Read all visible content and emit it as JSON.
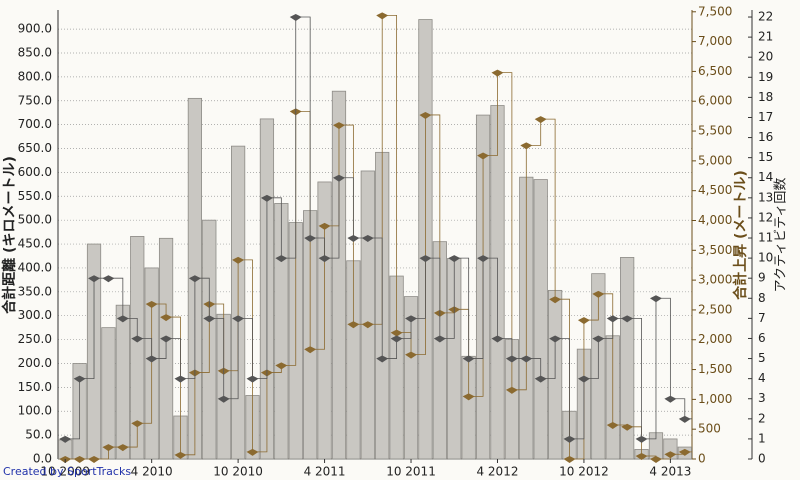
{
  "chart_data": {
    "type": "bar",
    "ylabel": "合計距離 (キロメートル)",
    "y2label": "合計上昇 (メートル)",
    "y3label": "アクティビティ回数",
    "footer": "Created by SportTracks",
    "categories": [
      "10 2009",
      null,
      null,
      null,
      null,
      null,
      "4 2010",
      null,
      null,
      null,
      null,
      null,
      "10 2010",
      null,
      null,
      null,
      null,
      null,
      "4 2011",
      null,
      null,
      null,
      null,
      null,
      "10 2011",
      null,
      null,
      null,
      null,
      null,
      "4 2012",
      null,
      null,
      null,
      null,
      null,
      "10 2012",
      null,
      null,
      null,
      null,
      null,
      "4 2013",
      null
    ],
    "ylim": [
      0,
      940
    ],
    "y2lim": [
      0,
      7530
    ],
    "y3lim": [
      0,
      22.35
    ],
    "yticks": [
      {
        "value": 0,
        "label": "0.0"
      },
      {
        "value": 50,
        "label": "50.0"
      },
      {
        "value": 100,
        "label": "100.0"
      },
      {
        "value": 150,
        "label": "150.0"
      },
      {
        "value": 200,
        "label": "200.0"
      },
      {
        "value": 250,
        "label": "250.0"
      },
      {
        "value": 300,
        "label": "300.0"
      },
      {
        "value": 350,
        "label": "350.0"
      },
      {
        "value": 400,
        "label": "400.0"
      },
      {
        "value": 450,
        "label": "450.0"
      },
      {
        "value": 500,
        "label": "500.0"
      },
      {
        "value": 550,
        "label": "550.0"
      },
      {
        "value": 600,
        "label": "600.0"
      },
      {
        "value": 650,
        "label": "650.0"
      },
      {
        "value": 700,
        "label": "700.0"
      },
      {
        "value": 750,
        "label": "750.0"
      },
      {
        "value": 800,
        "label": "800.0"
      },
      {
        "value": 850,
        "label": "850.0"
      },
      {
        "value": 900,
        "label": "900.0"
      }
    ],
    "y2ticks": [
      0,
      500,
      {
        "value": 1000,
        "label": "1,000"
      },
      {
        "value": 1500,
        "label": "1,500"
      },
      {
        "value": 2000,
        "label": "2,000"
      },
      {
        "value": 2500,
        "label": "2,500"
      },
      {
        "value": 3000,
        "label": "3,000"
      },
      {
        "value": 3500,
        "label": "3,500"
      },
      {
        "value": 4000,
        "label": "4,000"
      },
      {
        "value": 4500,
        "label": "4,500"
      },
      {
        "value": 5000,
        "label": "5,000"
      },
      {
        "value": 5500,
        "label": "5,500"
      },
      {
        "value": 6000,
        "label": "6,000"
      },
      {
        "value": 6500,
        "label": "6,500"
      },
      {
        "value": 7000,
        "label": "7,000"
      },
      {
        "value": 7500,
        "label": "7,500"
      }
    ],
    "y3ticks": [
      0,
      1,
      2,
      3,
      4,
      5,
      6,
      7,
      8,
      9,
      10,
      11,
      12,
      13,
      14,
      15,
      16,
      17,
      18,
      19,
      20,
      21,
      22
    ],
    "grid": true,
    "series": [
      {
        "name": "合計距離 (キロメートル)",
        "color": "#c9c7c2",
        "values": [
          40,
          200,
          450,
          275,
          322,
          466,
          400,
          462,
          90,
          755,
          500,
          303,
          655,
          133,
          712,
          535,
          495,
          520,
          580,
          770,
          415,
          603,
          642,
          383,
          340,
          920,
          455,
          420,
          215,
          720,
          740,
          250,
          590,
          585,
          353,
          100,
          230,
          388,
          258,
          422,
          20,
          55,
          42,
          25
        ]
      },
      {
        "name": "合計上昇 (メートル)",
        "color": "#8b6a30",
        "axis": "y2",
        "values": [
          0,
          0,
          0,
          200,
          200,
          600,
          2600,
          2380,
          70,
          1450,
          2600,
          1480,
          3340,
          120,
          1450,
          1570,
          5830,
          1840,
          3910,
          5600,
          2260,
          2260,
          7440,
          2120,
          1750,
          5770,
          2450,
          2510,
          1050,
          5090,
          6480,
          1160,
          5260,
          5700,
          2680,
          0,
          2330,
          2770,
          570,
          540,
          50,
          0,
          80,
          120
        ]
      },
      {
        "name": "アクティビティ回数",
        "color": "#555555",
        "axis": "y3",
        "values": [
          1,
          4,
          9,
          9,
          7,
          6,
          5,
          6,
          4,
          9,
          7,
          3,
          7,
          4,
          13,
          10,
          22,
          11,
          10,
          14,
          11,
          11,
          5,
          6,
          7,
          10,
          6,
          10,
          5,
          10,
          6,
          5,
          5,
          4,
          6,
          1,
          4,
          6,
          7,
          7,
          1,
          8,
          3,
          2
        ]
      }
    ]
  }
}
